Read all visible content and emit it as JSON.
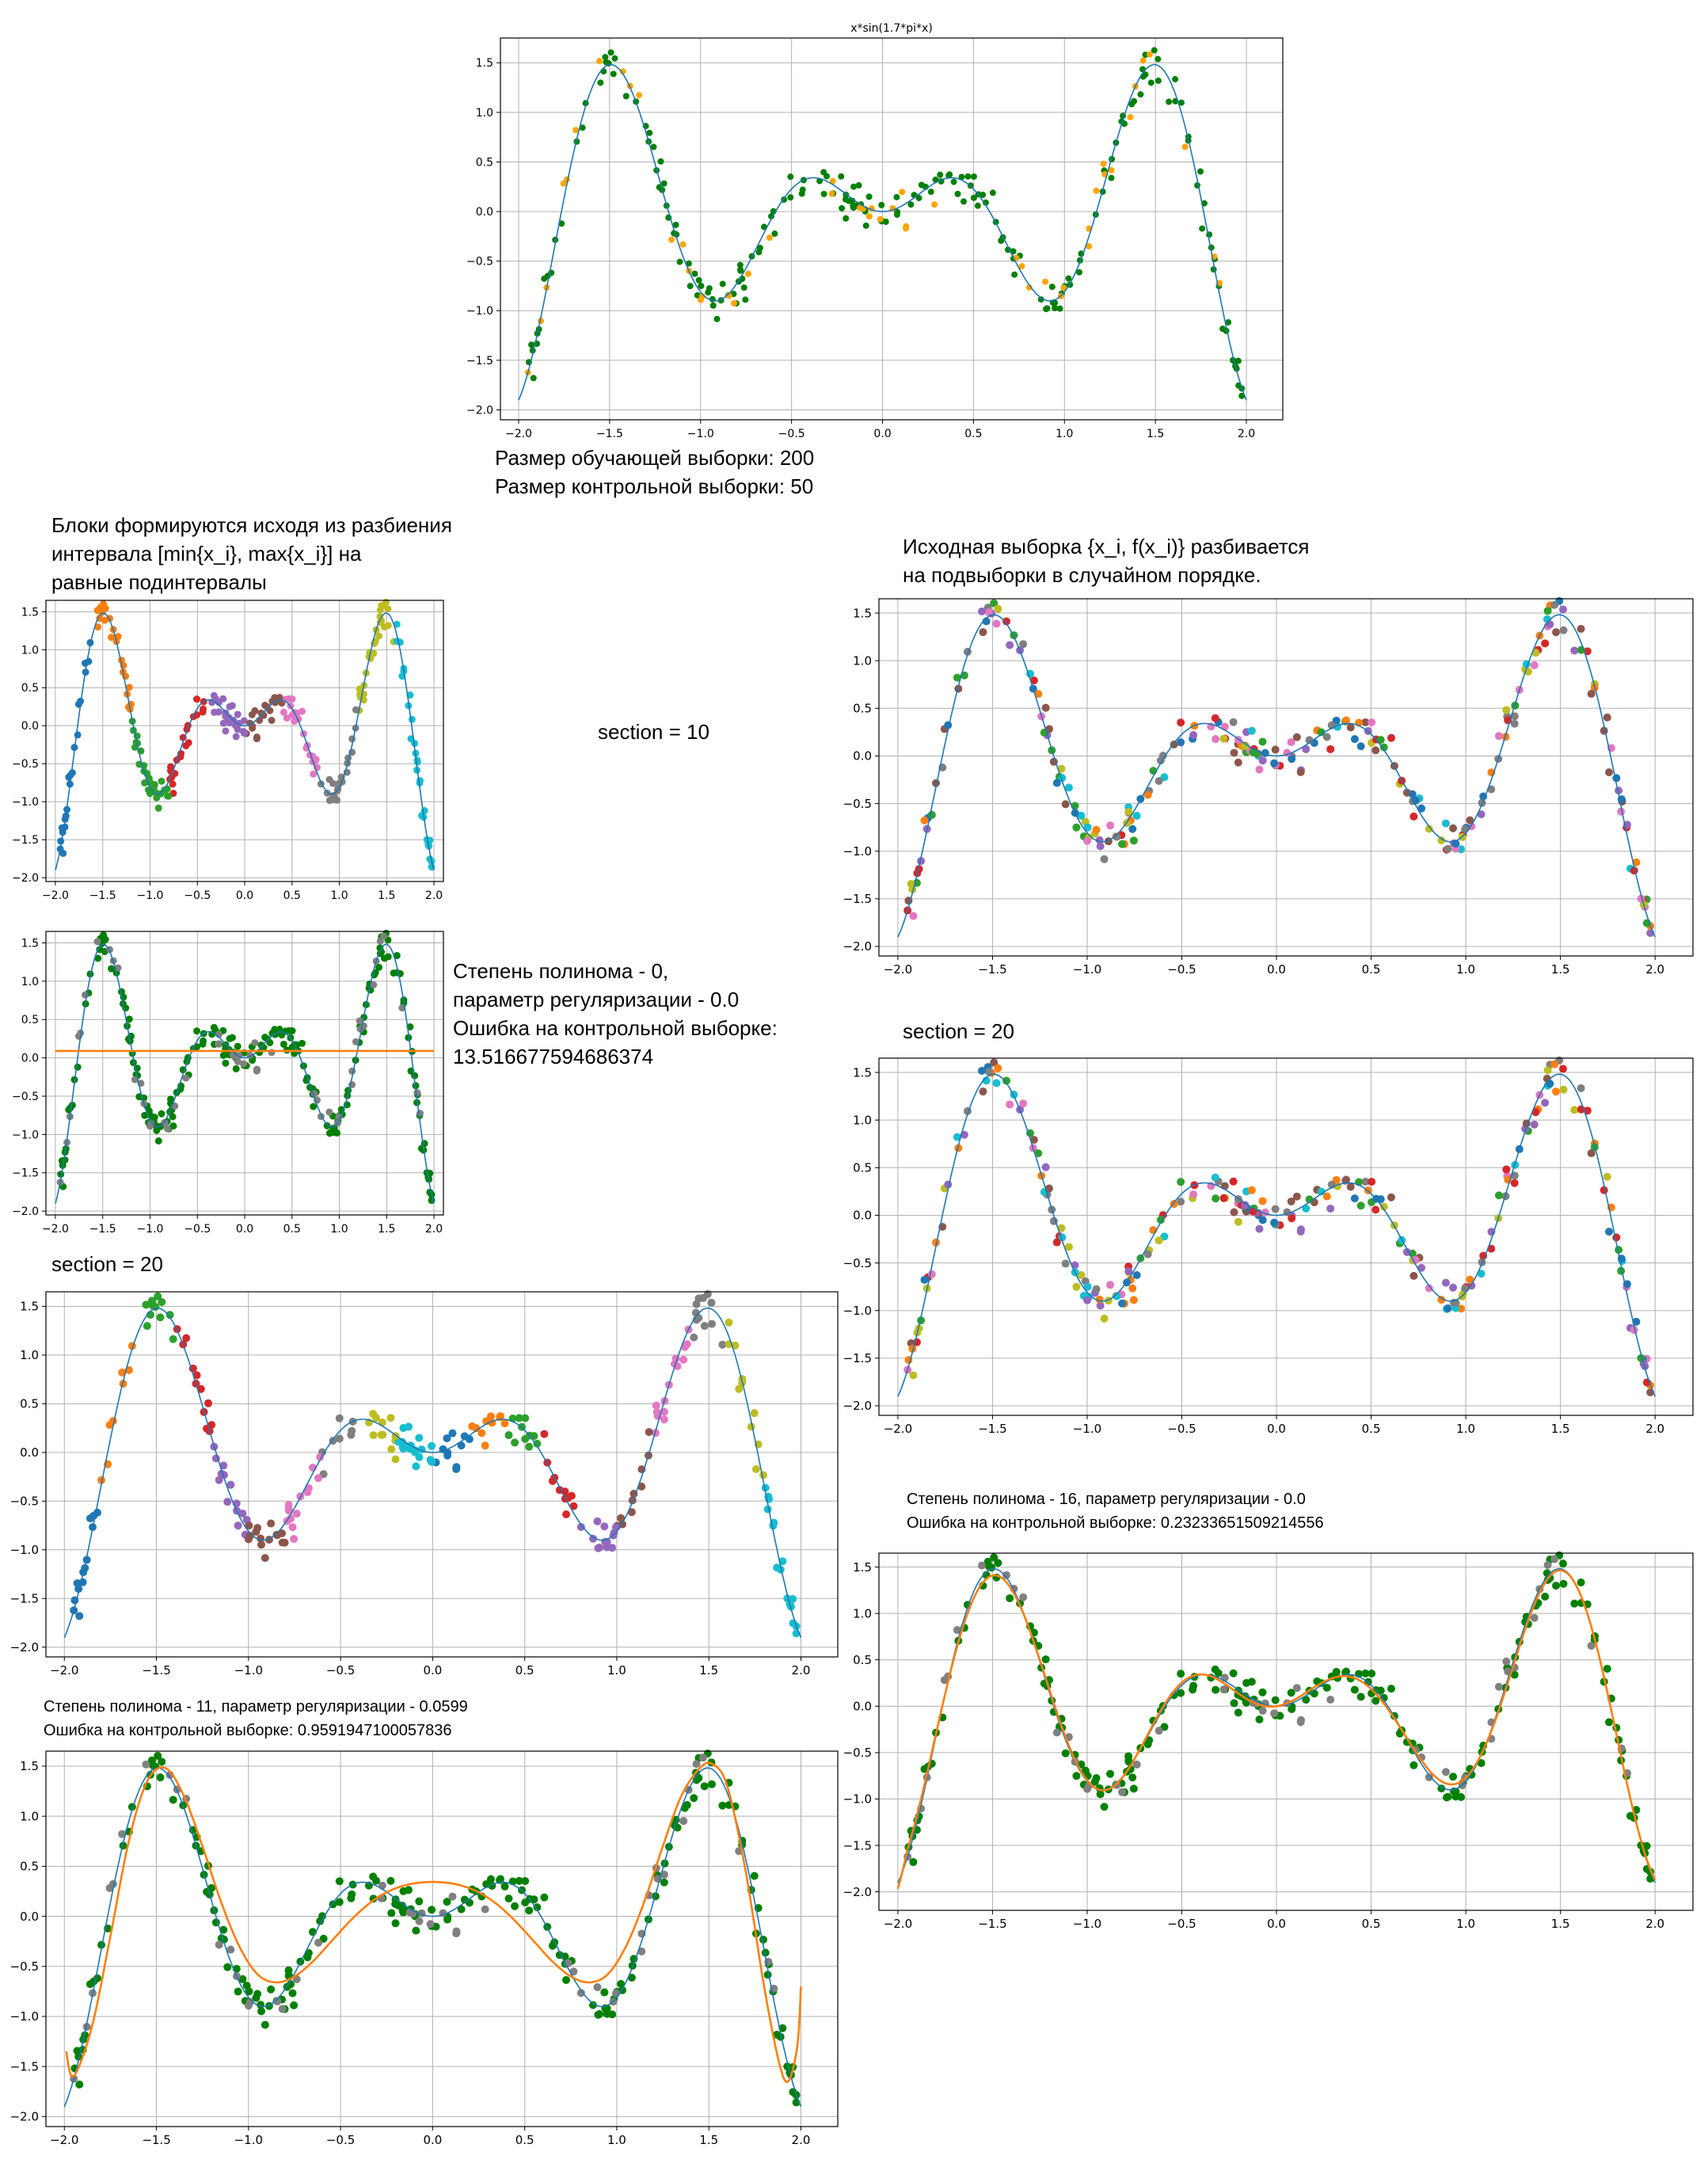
{
  "captions": {
    "sizes": [
      "Размер обучающей выборки: 200",
      "Размер контрольной выборки: 50"
    ],
    "blocks_note": [
      "Блоки формируются исходя из разбиения",
      "интервала [min{x_i}, max{x_i}] на",
      "равные подинтервалы"
    ],
    "random_note": [
      "Исходная выборка {x_i, f(x_i)} разбивается",
      "на подвыборки в случайном порядке."
    ],
    "section_10": "section = 10",
    "section_20_left": "section = 20",
    "section_20_right": "section = 20",
    "poly0": [
      "Степень полинома - 0,",
      "параметр регуляризации - 0.0",
      "Ошибка на контрольной выборке:",
      "13.516677594686374"
    ],
    "poly11": [
      "Степень полинома - 11,  параметр регуляризации - 0.0599",
      "Ошибка на контрольной выборке: 0.9591947100057836"
    ],
    "poly16": [
      "Степень полинома - 16,  параметр регуляризации - 0.0",
      "Ошибка на контрольной выборке: 0.23233651509214556"
    ]
  },
  "chart_data": [
    {
      "id": "main",
      "type": "scatter",
      "title": "x*sin(1.7*pi*x)",
      "xlim": [
        -2.1,
        2.2
      ],
      "ylim": [
        -2.1,
        1.75
      ],
      "xticks": [
        -2.0,
        -1.5,
        -1.0,
        -0.5,
        0.0,
        0.5,
        1.0,
        1.5,
        2.0
      ],
      "yticks": [
        -2.0,
        -1.5,
        -1.0,
        -0.5,
        0.0,
        0.5,
        1.0,
        1.5
      ],
      "grid": true,
      "true_curve": "x*sin(1.7*pi*x)",
      "curve_color": "#1f77b4",
      "coloring": "train_test",
      "colors": {
        "train": "#008000",
        "test": "#ffa500"
      },
      "train_size": 200,
      "test_size": 50
    },
    {
      "id": "blocks10",
      "type": "scatter",
      "title": "",
      "xlim": [
        -2.1,
        2.1
      ],
      "ylim": [
        -2.05,
        1.65
      ],
      "xticks": [
        -2.0,
        -1.5,
        -1.0,
        -0.5,
        0.0,
        0.5,
        1.0,
        1.5,
        2.0
      ],
      "yticks": [
        -2.0,
        -1.5,
        -1.0,
        -0.5,
        0.0,
        0.5,
        1.0,
        1.5
      ],
      "grid": true,
      "true_curve": "x*sin(1.7*pi*x)",
      "curve_color": "#1f77b4",
      "coloring": "interval_blocks",
      "sections": 10
    },
    {
      "id": "poly0",
      "type": "scatter",
      "title": "",
      "xlim": [
        -2.1,
        2.1
      ],
      "ylim": [
        -2.05,
        1.65
      ],
      "xticks": [
        -2.0,
        -1.5,
        -1.0,
        -0.5,
        0.0,
        0.5,
        1.0,
        1.5,
        2.0
      ],
      "yticks": [
        -2.0,
        -1.5,
        -1.0,
        -0.5,
        0.0,
        0.5,
        1.0,
        1.5
      ],
      "grid": true,
      "true_curve": "x*sin(1.7*pi*x)",
      "curve_color": "#1f77b4",
      "coloring": "train_test",
      "colors": {
        "train": "#008000",
        "test": "#808080"
      },
      "fit": {
        "degree": 0,
        "color": "#ff7f0e",
        "constant": 0.09
      }
    },
    {
      "id": "blocks20",
      "type": "scatter",
      "title": "",
      "xlim": [
        -2.1,
        2.2
      ],
      "ylim": [
        -2.1,
        1.65
      ],
      "xticks": [
        -2.0,
        -1.5,
        -1.0,
        -0.5,
        0.0,
        0.5,
        1.0,
        1.5,
        2.0
      ],
      "yticks": [
        -2.0,
        -1.5,
        -1.0,
        -0.5,
        0.0,
        0.5,
        1.0,
        1.5
      ],
      "grid": true,
      "true_curve": "x*sin(1.7*pi*x)",
      "curve_color": "#1f77b4",
      "coloring": "interval_blocks",
      "sections": 20
    },
    {
      "id": "poly11",
      "type": "scatter",
      "title": "",
      "xlim": [
        -2.1,
        2.2
      ],
      "ylim": [
        -2.1,
        1.65
      ],
      "xticks": [
        -2.0,
        -1.5,
        -1.0,
        -0.5,
        0.0,
        0.5,
        1.0,
        1.5,
        2.0
      ],
      "yticks": [
        -2.0,
        -1.5,
        -1.0,
        -0.5,
        0.0,
        0.5,
        1.0,
        1.5
      ],
      "grid": true,
      "true_curve": "x*sin(1.7*pi*x)",
      "curve_color": "#1f77b4",
      "coloring": "train_test",
      "colors": {
        "train": "#008000",
        "test": "#808080"
      },
      "fit": {
        "degree": 11,
        "color": "#ff7f0e",
        "regularization": 0.0599,
        "x": [
          -1.99,
          -1.95,
          -1.85,
          -1.75,
          -1.65,
          -1.55,
          -1.45,
          -1.35,
          -1.25,
          -1.15,
          -1.05,
          -0.95,
          -0.85,
          -0.75,
          -0.65,
          -0.55,
          -0.45,
          -0.35,
          -0.25,
          -0.15,
          -0.05,
          0.05,
          0.15,
          0.25,
          0.35,
          0.45,
          0.55,
          0.65,
          0.75,
          0.85,
          0.95,
          1.05,
          1.15,
          1.25,
          1.35,
          1.45,
          1.52,
          1.6,
          1.7,
          1.8,
          1.88,
          1.93,
          1.98,
          2.0
        ],
        "y": [
          -1.35,
          -1.6,
          -1.1,
          -0.2,
          0.75,
          1.35,
          1.48,
          1.2,
          0.7,
          0.15,
          -0.3,
          -0.58,
          -0.66,
          -0.6,
          -0.45,
          -0.25,
          -0.05,
          0.12,
          0.24,
          0.31,
          0.34,
          0.34,
          0.31,
          0.24,
          0.12,
          -0.05,
          -0.25,
          -0.45,
          -0.6,
          -0.66,
          -0.58,
          -0.3,
          0.15,
          0.7,
          1.2,
          1.48,
          1.52,
          1.3,
          0.45,
          -0.7,
          -1.45,
          -1.65,
          -1.3,
          -0.7
        ]
      }
    },
    {
      "id": "random10",
      "type": "scatter",
      "title": "",
      "xlim": [
        -2.1,
        2.2
      ],
      "ylim": [
        -2.1,
        1.65
      ],
      "xticks": [
        -2.0,
        -1.5,
        -1.0,
        -0.5,
        0.0,
        0.5,
        1.0,
        1.5,
        2.0
      ],
      "yticks": [
        -2.0,
        -1.5,
        -1.0,
        -0.5,
        0.0,
        0.5,
        1.0,
        1.5
      ],
      "grid": true,
      "true_curve": "x*sin(1.7*pi*x)",
      "curve_color": "#1f77b4",
      "coloring": "random_blocks",
      "sections": 10
    },
    {
      "id": "random20",
      "type": "scatter",
      "title": "",
      "xlim": [
        -2.1,
        2.2
      ],
      "ylim": [
        -2.1,
        1.65
      ],
      "xticks": [
        -2.0,
        -1.5,
        -1.0,
        -0.5,
        0.0,
        0.5,
        1.0,
        1.5,
        2.0
      ],
      "yticks": [
        -2.0,
        -1.5,
        -1.0,
        -0.5,
        0.0,
        0.5,
        1.0,
        1.5
      ],
      "grid": true,
      "true_curve": "x*sin(1.7*pi*x)",
      "curve_color": "#1f77b4",
      "coloring": "random_blocks",
      "sections": 20
    },
    {
      "id": "poly16",
      "type": "scatter",
      "title": "",
      "xlim": [
        -2.1,
        2.2
      ],
      "ylim": [
        -2.2,
        1.65
      ],
      "xticks": [
        -2.0,
        -1.5,
        -1.0,
        -0.5,
        0.0,
        0.5,
        1.0,
        1.5,
        2.0
      ],
      "yticks": [
        -2.0,
        -1.5,
        -1.0,
        -0.5,
        0.0,
        0.5,
        1.0,
        1.5
      ],
      "grid": true,
      "true_curve": "x*sin(1.7*pi*x)",
      "curve_color": "#1f77b4",
      "coloring": "train_test",
      "colors": {
        "train": "#008000",
        "test": "#808080"
      },
      "fit": {
        "degree": 16,
        "color": "#ff7f0e",
        "regularization": 0.0,
        "follows_true_curve": true
      }
    }
  ],
  "palette": [
    "#1f77b4",
    "#ff7f0e",
    "#2ca02c",
    "#d62728",
    "#9467bd",
    "#8c564b",
    "#e377c2",
    "#7f7f7f",
    "#bcbd22",
    "#17becf"
  ]
}
